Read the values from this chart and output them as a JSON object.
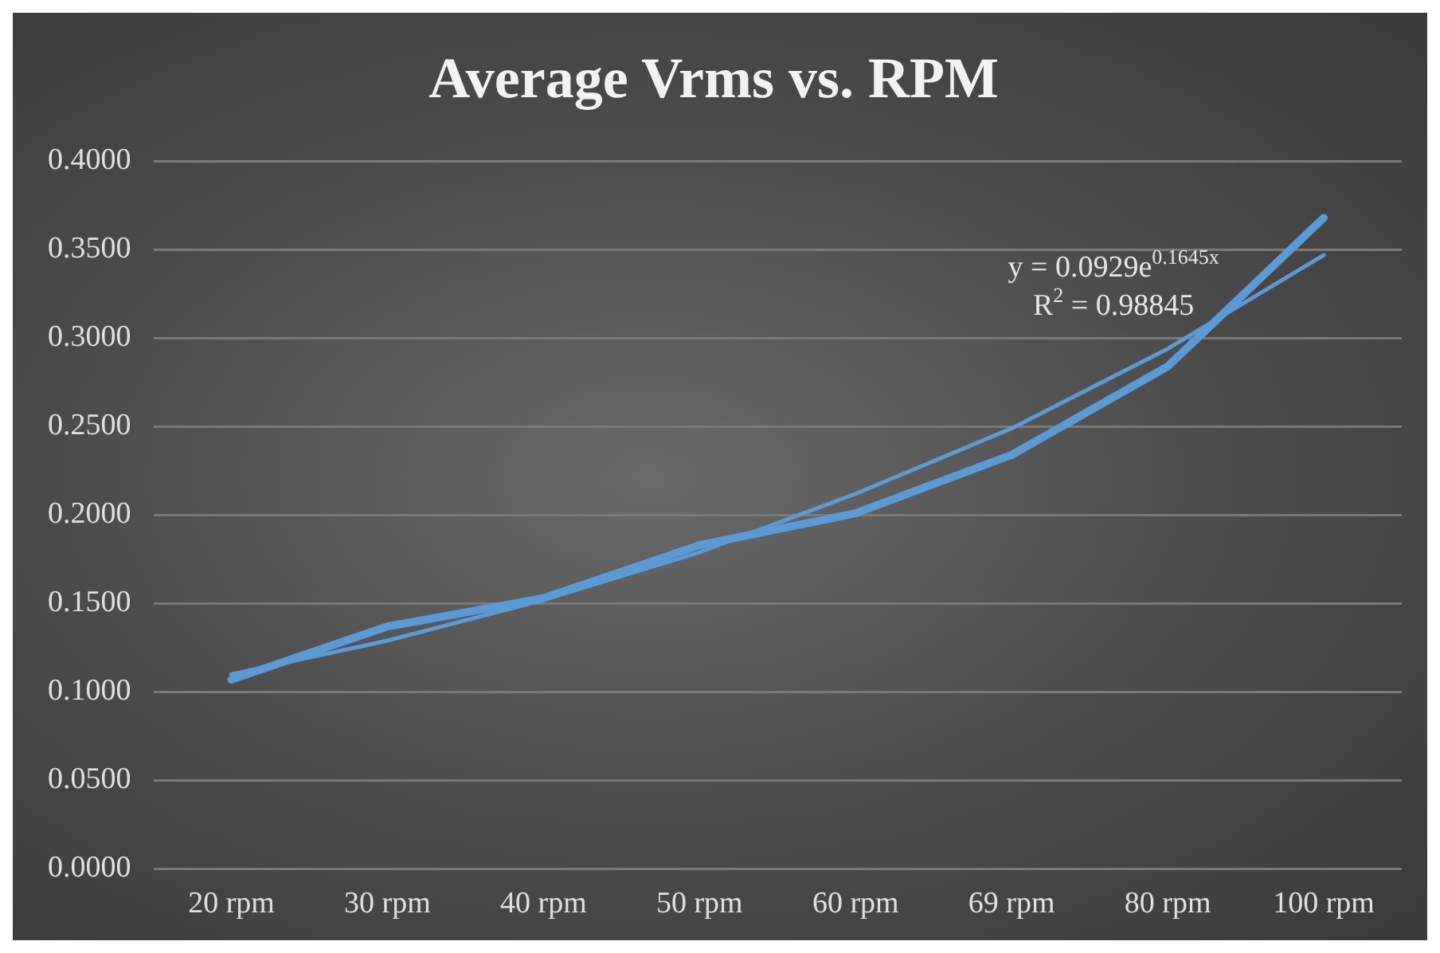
{
  "chart_data": {
    "type": "line",
    "title": "Average Vrms vs. RPM",
    "categories": [
      "20 rpm",
      "30 rpm",
      "40 rpm",
      "50 rpm",
      "60 rpm",
      "69 rpm",
      "80 rpm",
      "100 rpm"
    ],
    "series": [
      {
        "color": "#5b9bd5",
        "values": [
          0.107,
          0.137,
          0.153,
          0.183,
          0.201,
          0.234,
          0.284,
          0.368
        ]
      },
      {
        "color": "#5b9bd5",
        "values": [
          0.11,
          0.129,
          0.152,
          0.179,
          0.212,
          0.249,
          0.294,
          0.347
        ]
      }
    ],
    "ylim": [
      0,
      0.4
    ],
    "yticks": [
      {
        "value": 0,
        "label": "0.0000"
      },
      {
        "value": 0.05,
        "label": "0.0500"
      },
      {
        "value": 0.1,
        "label": "0.1000"
      },
      {
        "value": 0.15,
        "label": "0.1500"
      },
      {
        "value": 0.2,
        "label": "0.2000"
      },
      {
        "value": 0.25,
        "label": "0.2500"
      },
      {
        "value": 0.3,
        "label": "0.3000"
      },
      {
        "value": 0.35,
        "label": "0.3500"
      },
      {
        "value": 0.4,
        "label": "0.4000"
      }
    ],
    "grid": "y",
    "legend": false,
    "marker": "none",
    "line_style": "solid",
    "annotations": [
      "y = 0.0929e$^{0.1645x}$",
      "R$^{2}$ = 0.98845"
    ]
  }
}
